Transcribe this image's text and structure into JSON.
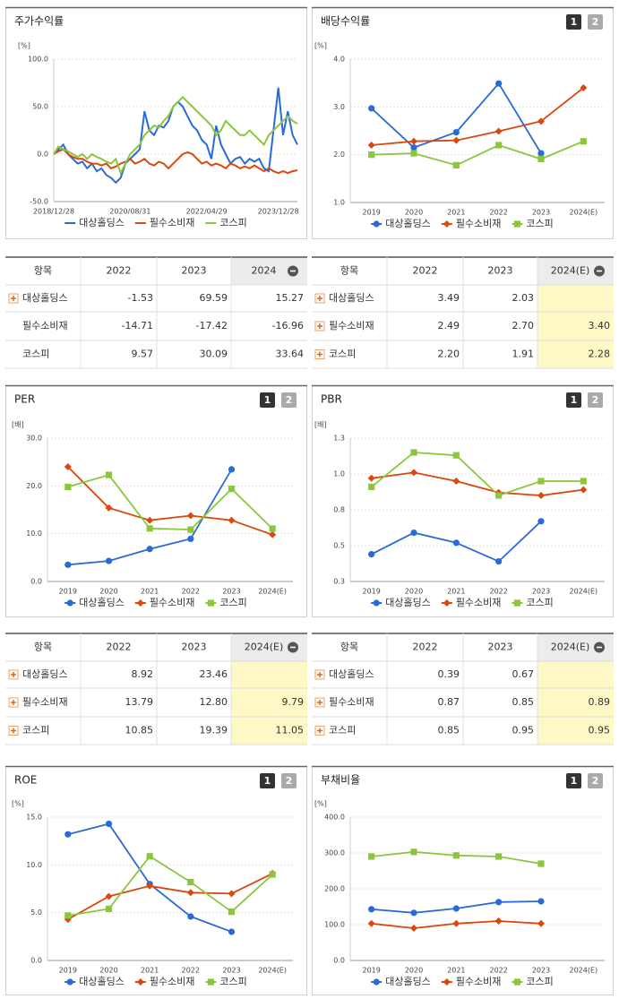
{
  "chart_data": [
    {
      "type": "line",
      "title": "주가수익률",
      "unit": "[%]",
      "categories": [
        "2018/12/28",
        null,
        null,
        null,
        null,
        null,
        null,
        null,
        null,
        null,
        null,
        null,
        null,
        null,
        null,
        null,
        "2020/08/31",
        null,
        null,
        null,
        null,
        null,
        null,
        null,
        null,
        null,
        null,
        null,
        null,
        null,
        null,
        null,
        "2022/04/29",
        null,
        null,
        null,
        null,
        null,
        null,
        null,
        null,
        null,
        null,
        null,
        null,
        null,
        null,
        "2023/12/28",
        null,
        null,
        null,
        null
      ],
      "ylim": [
        -50,
        100
      ],
      "yticks": [
        {
          "value": -50,
          "label": "-50.0"
        },
        {
          "value": 0,
          "label": "0.0"
        },
        {
          "value": 50,
          "label": "50.0"
        },
        {
          "value": 100,
          "label": "100.0"
        }
      ],
      "series": [
        {
          "name": "대상홀딩스",
          "color": "#2a6ad8",
          "values": [
            0,
            5,
            10,
            0,
            -5,
            -10,
            -8,
            -15,
            -10,
            -18,
            -15,
            -22,
            -25,
            -30,
            -25,
            -10,
            -5,
            0,
            5,
            45,
            25,
            20,
            30,
            28,
            35,
            50,
            55,
            50,
            40,
            30,
            25,
            15,
            10,
            -5,
            30,
            10,
            0,
            -10,
            -5,
            -3,
            -10,
            -5,
            -8,
            -5,
            -15,
            -18,
            25,
            70,
            20,
            45,
            20,
            10
          ]
        },
        {
          "name": "필수소비재",
          "color": "#d9480f",
          "values": [
            0,
            3,
            5,
            0,
            -3,
            -5,
            -5,
            -8,
            -10,
            -10,
            -12,
            -10,
            -15,
            -13,
            -10,
            -8,
            -5,
            -10,
            -8,
            -5,
            -10,
            -12,
            -8,
            -10,
            -15,
            -10,
            -5,
            0,
            2,
            0,
            -5,
            -10,
            -8,
            -12,
            -10,
            -12,
            -15,
            -10,
            -12,
            -15,
            -13,
            -15,
            -12,
            -15,
            -18,
            -15,
            -18,
            -20,
            -18,
            -20,
            -18,
            -17
          ]
        },
        {
          "name": "코스피",
          "color": "#8cc63f",
          "values": [
            0,
            8,
            5,
            3,
            0,
            -3,
            0,
            -5,
            0,
            -3,
            -5,
            -8,
            -10,
            -5,
            -20,
            -10,
            0,
            5,
            10,
            20,
            25,
            30,
            28,
            35,
            40,
            50,
            55,
            60,
            55,
            50,
            45,
            40,
            35,
            30,
            20,
            25,
            35,
            30,
            25,
            20,
            20,
            25,
            20,
            15,
            10,
            20,
            25,
            30,
            35,
            40,
            35,
            32
          ]
        }
      ]
    },
    {
      "type": "line",
      "title": "배당수익률",
      "unit": "[%]",
      "buttons": [
        "1",
        "2"
      ],
      "categories": [
        "2019",
        "2020",
        "2021",
        "2022",
        "2023",
        "2024(E)"
      ],
      "ylim": [
        1,
        4
      ],
      "yticks": [
        {
          "value": 1,
          "label": "1.0"
        },
        {
          "value": 2,
          "label": "2.0"
        },
        {
          "value": 3,
          "label": "3.0"
        },
        {
          "value": 4,
          "label": "4.0"
        }
      ],
      "series": [
        {
          "name": "대상홀딩스",
          "color": "#2a6ad8",
          "marker": "circle",
          "values": [
            2.97,
            2.15,
            2.47,
            3.49,
            2.03,
            null
          ]
        },
        {
          "name": "필수소비재",
          "color": "#d9480f",
          "marker": "diamond",
          "values": [
            2.2,
            2.28,
            2.3,
            2.49,
            2.7,
            3.4
          ]
        },
        {
          "name": "코스피",
          "color": "#8cc63f",
          "marker": "square",
          "values": [
            2.0,
            2.03,
            1.78,
            2.2,
            1.91,
            2.28
          ]
        }
      ]
    },
    {
      "type": "line",
      "title": "PER",
      "unit": "[배]",
      "buttons": [
        "1",
        "2"
      ],
      "categories": [
        "2019",
        "2020",
        "2021",
        "2022",
        "2023",
        "2024(E)"
      ],
      "ylim": [
        0,
        30
      ],
      "yticks": [
        {
          "value": 0,
          "label": "0.0"
        },
        {
          "value": 10,
          "label": "10.0"
        },
        {
          "value": 20,
          "label": "20.0"
        },
        {
          "value": 30,
          "label": "30.0"
        }
      ],
      "series": [
        {
          "name": "대상홀딩스",
          "color": "#2a6ad8",
          "marker": "circle",
          "values": [
            3.5,
            4.3,
            6.8,
            8.92,
            23.46,
            null
          ]
        },
        {
          "name": "필수소비재",
          "color": "#d9480f",
          "marker": "diamond",
          "values": [
            24.0,
            15.4,
            12.8,
            13.79,
            12.8,
            9.79
          ]
        },
        {
          "name": "코스피",
          "color": "#8cc63f",
          "marker": "square",
          "values": [
            19.8,
            22.3,
            11.1,
            10.85,
            19.39,
            11.05
          ]
        }
      ]
    },
    {
      "type": "line",
      "title": "PBR",
      "unit": "[배]",
      "buttons": [
        "1",
        "2"
      ],
      "categories": [
        "2019",
        "2020",
        "2021",
        "2022",
        "2023",
        "2024(E)"
      ],
      "ylim": [
        0.25,
        1.25
      ],
      "yticks": [
        {
          "value": 0.25,
          "label": "0.3"
        },
        {
          "value": 0.5,
          "label": "0.5"
        },
        {
          "value": 0.75,
          "label": "0.8"
        },
        {
          "value": 1,
          "label": "1.0"
        },
        {
          "value": 1.25,
          "label": "1.3"
        }
      ],
      "series": [
        {
          "name": "대상홀딩스",
          "color": "#2a6ad8",
          "marker": "circle",
          "values": [
            0.44,
            0.59,
            0.52,
            0.39,
            0.67,
            null
          ]
        },
        {
          "name": "필수소비재",
          "color": "#d9480f",
          "marker": "diamond",
          "values": [
            0.97,
            1.01,
            0.95,
            0.87,
            0.85,
            0.89
          ]
        },
        {
          "name": "코스피",
          "color": "#8cc63f",
          "marker": "square",
          "values": [
            0.91,
            1.15,
            1.13,
            0.85,
            0.95,
            0.95
          ]
        }
      ]
    },
    {
      "type": "line",
      "title": "ROE",
      "unit": "[%]",
      "buttons": [
        "1",
        "2"
      ],
      "categories": [
        "2019",
        "2020",
        "2021",
        "2022",
        "2023",
        "2024(E)"
      ],
      "ylim": [
        0,
        15
      ],
      "yticks": [
        {
          "value": 0,
          "label": "0.0"
        },
        {
          "value": 5,
          "label": "5.0"
        },
        {
          "value": 10,
          "label": "10.0"
        },
        {
          "value": 15,
          "label": "15.0"
        }
      ],
      "series": [
        {
          "name": "대상홀딩스",
          "color": "#2a6ad8",
          "marker": "circle",
          "values": [
            13.2,
            14.3,
            8.0,
            4.6,
            3.0,
            null
          ]
        },
        {
          "name": "필수소비재",
          "color": "#d9480f",
          "marker": "diamond",
          "values": [
            4.3,
            6.7,
            7.8,
            7.1,
            7.0,
            9.1
          ]
        },
        {
          "name": "코스피",
          "color": "#8cc63f",
          "marker": "square",
          "values": [
            4.7,
            5.4,
            10.9,
            8.2,
            5.1,
            9.0
          ]
        }
      ]
    },
    {
      "type": "line",
      "title": "부채비율",
      "unit": "[%]",
      "buttons": [
        "1",
        "2"
      ],
      "categories": [
        "2019",
        "2020",
        "2021",
        "2022",
        "2023",
        "2024(E)"
      ],
      "ylim": [
        0,
        400
      ],
      "yticks": [
        {
          "value": 0,
          "label": "0.0"
        },
        {
          "value": 100,
          "label": "100.0"
        },
        {
          "value": 200,
          "label": "200.0"
        },
        {
          "value": 300,
          "label": "300.0"
        },
        {
          "value": 400,
          "label": "400.0"
        }
      ],
      "series": [
        {
          "name": "대상홀딩스",
          "color": "#2a6ad8",
          "marker": "circle",
          "values": [
            143,
            133,
            145,
            163,
            165,
            null
          ]
        },
        {
          "name": "필수소비재",
          "color": "#d9480f",
          "marker": "diamond",
          "values": [
            103,
            90,
            103,
            110,
            103,
            null
          ]
        },
        {
          "name": "코스피",
          "color": "#8cc63f",
          "marker": "square",
          "values": [
            290,
            303,
            293,
            290,
            270,
            null
          ]
        }
      ]
    }
  ],
  "tables": [
    {
      "headers": [
        "항목",
        "2022",
        "2023",
        "2024"
      ],
      "highlight_last_column": false,
      "rows": [
        {
          "name": "대상홀딩스",
          "expandable": true,
          "cells": [
            "-1.53",
            "69.59",
            "15.27"
          ]
        },
        {
          "name": "필수소비재",
          "expandable": false,
          "cells": [
            "-14.71",
            "-17.42",
            "-16.96"
          ]
        },
        {
          "name": "코스피",
          "expandable": false,
          "cells": [
            "9.57",
            "30.09",
            "33.64"
          ]
        }
      ]
    },
    {
      "headers": [
        "항목",
        "2022",
        "2023",
        "2024(E)"
      ],
      "highlight_last_column": true,
      "rows": [
        {
          "name": "대상홀딩스",
          "expandable": true,
          "cells": [
            "3.49",
            "2.03",
            null
          ]
        },
        {
          "name": "필수소비재",
          "expandable": true,
          "cells": [
            "2.49",
            "2.70",
            "3.40"
          ]
        },
        {
          "name": "코스피",
          "expandable": true,
          "cells": [
            "2.20",
            "1.91",
            "2.28"
          ]
        }
      ]
    },
    {
      "headers": [
        "항목",
        "2022",
        "2023",
        "2024(E)"
      ],
      "highlight_last_column": true,
      "rows": [
        {
          "name": "대상홀딩스",
          "expandable": true,
          "cells": [
            "8.92",
            "23.46",
            null
          ]
        },
        {
          "name": "필수소비재",
          "expandable": true,
          "cells": [
            "13.79",
            "12.80",
            "9.79"
          ]
        },
        {
          "name": "코스피",
          "expandable": true,
          "cells": [
            "10.85",
            "19.39",
            "11.05"
          ]
        }
      ]
    },
    {
      "headers": [
        "항목",
        "2022",
        "2023",
        "2024(E)"
      ],
      "highlight_last_column": true,
      "rows": [
        {
          "name": "대상홀딩스",
          "expandable": true,
          "cells": [
            "0.39",
            "0.67",
            null
          ]
        },
        {
          "name": "필수소비재",
          "expandable": true,
          "cells": [
            "0.87",
            "0.85",
            "0.89"
          ]
        },
        {
          "name": "코스피",
          "expandable": true,
          "cells": [
            "0.85",
            "0.95",
            "0.95"
          ]
        }
      ]
    }
  ]
}
